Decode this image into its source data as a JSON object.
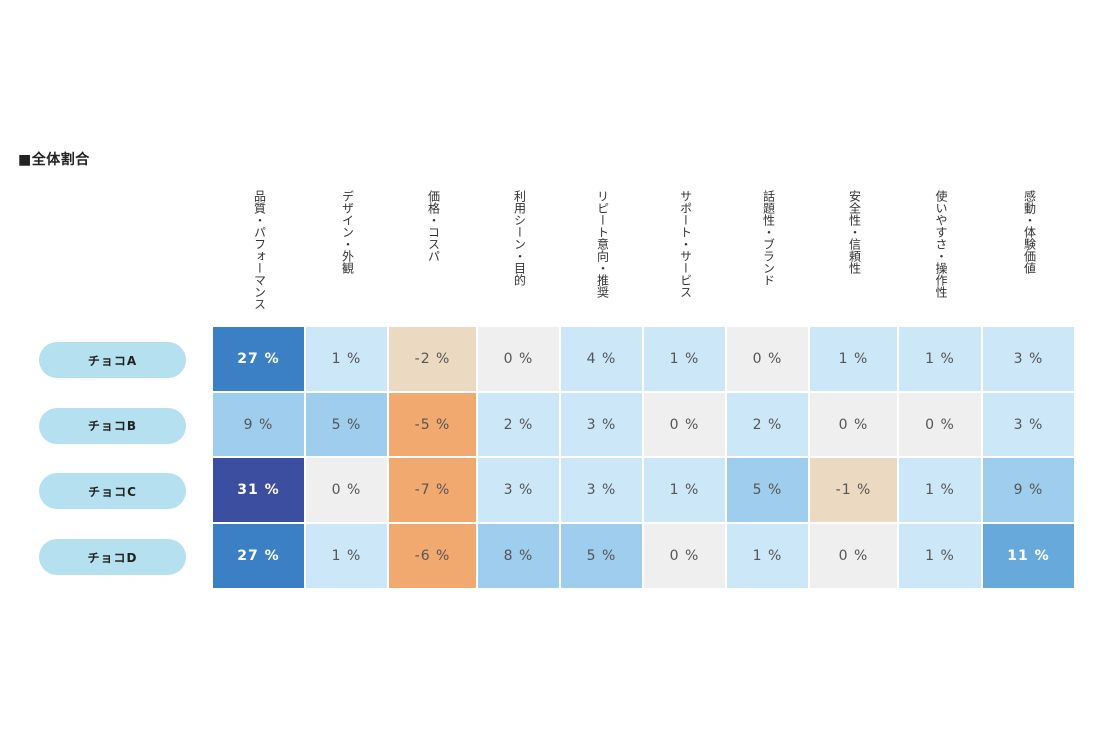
{
  "section_title": "■全体割合",
  "chart_data": {
    "type": "heatmap",
    "columns": [
      "品質・パフォーマンス",
      "デザイン・外観",
      "価格・コスパ",
      "利用シーン・目的",
      "リピート意向・推奨",
      "サポート・サービス",
      "話題性・ブランド",
      "安全性・信頼性",
      "使いやすさ・操作性",
      "感動・体験価値"
    ],
    "rows": [
      {
        "label": "チョコA",
        "values": [
          27,
          1,
          -2,
          0,
          4,
          1,
          0,
          1,
          1,
          3
        ]
      },
      {
        "label": "チョコB",
        "values": [
          9,
          5,
          -5,
          2,
          3,
          0,
          2,
          0,
          0,
          3
        ]
      },
      {
        "label": "チョコC",
        "values": [
          31,
          0,
          -7,
          3,
          3,
          1,
          5,
          -1,
          1,
          9
        ]
      },
      {
        "label": "チョコD",
        "values": [
          27,
          1,
          -6,
          8,
          5,
          0,
          1,
          0,
          1,
          11
        ]
      }
    ],
    "unit": "%",
    "colors": {
      "zero": "#efefef",
      "pos_1": "#cce7f8",
      "pos_2": "#9ecdee",
      "pos_3": "#68a9dc",
      "pos_4": "#3b80c4",
      "pos_5": "#3b4ea0",
      "neg_1": "#ecd9c2",
      "neg_2": "#f2a970"
    }
  }
}
